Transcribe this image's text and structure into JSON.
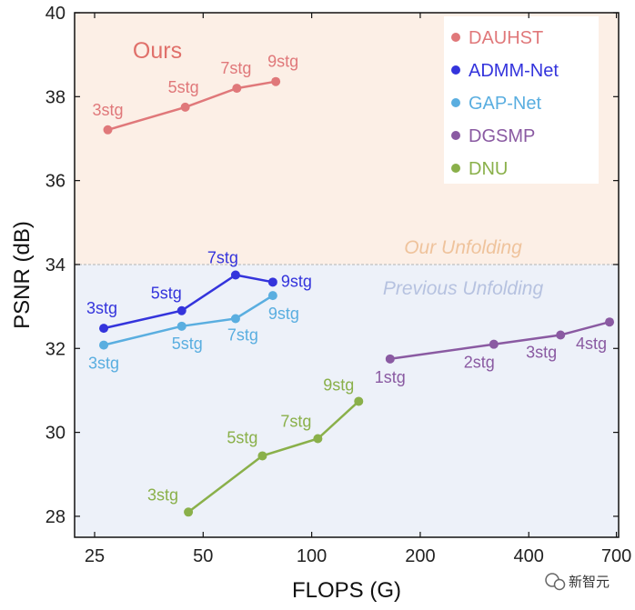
{
  "chart_data": {
    "type": "line",
    "xlabel": "FLOPS (G)",
    "ylabel": "PSNR (dB)",
    "x_scale": "log",
    "xlim": [
      22,
      710
    ],
    "ylim": [
      27.5,
      40
    ],
    "x_ticks": [
      25,
      50,
      100,
      200,
      400,
      700
    ],
    "x_tick_labels": [
      "25",
      "50",
      "100",
      "200",
      "400",
      "700"
    ],
    "y_ticks": [
      28,
      30,
      32,
      34,
      36,
      38,
      40
    ],
    "y_tick_labels": [
      "28",
      "30",
      "32",
      "34",
      "36",
      "38",
      "40"
    ],
    "grid": false,
    "legend_position": "top-right",
    "divider_y": 34.0,
    "regions": {
      "upper_label": "Our Unfolding",
      "lower_label": "Previous Unfolding",
      "upper_color": "#fcefe6",
      "lower_color": "#edf1f9",
      "upper_label_color": "#efc39c",
      "lower_label_color": "#b6c2e0"
    },
    "annotations": [
      {
        "text": "Ours",
        "color": "#e0706a"
      }
    ],
    "series": [
      {
        "name": "DAUHST",
        "color": "#e0787a",
        "x": [
          27.2,
          44.6,
          62.0,
          79.5
        ],
        "y": [
          37.21,
          37.75,
          38.2,
          38.36
        ],
        "labels": [
          "3stg",
          "5stg",
          "7stg",
          "9stg"
        ]
      },
      {
        "name": "ADMM-Net",
        "color": "#3434dc",
        "x": [
          26.5,
          43.6,
          61.5,
          78.0
        ],
        "y": [
          32.48,
          32.9,
          33.75,
          33.58
        ],
        "labels": [
          "3stg",
          "5stg",
          "7stg",
          "9stg"
        ]
      },
      {
        "name": "GAP-Net",
        "color": "#5aaee0",
        "x": [
          26.5,
          43.6,
          61.5,
          78.0
        ],
        "y": [
          32.08,
          32.53,
          32.71,
          33.26
        ],
        "labels": [
          "3stg",
          "5stg",
          "7stg",
          "9stg"
        ]
      },
      {
        "name": "DGSMP",
        "color": "#8a5aa2",
        "x": [
          165,
          320,
          490,
          670
        ],
        "y": [
          31.75,
          32.1,
          32.32,
          32.63
        ],
        "labels": [
          "1stg",
          "2stg",
          "3stg",
          "4stg"
        ]
      },
      {
        "name": "DNU",
        "color": "#8ab04a",
        "x": [
          45.5,
          73.0,
          104.0,
          135.0
        ],
        "y": [
          28.1,
          29.44,
          29.85,
          30.74
        ],
        "labels": [
          "3stg",
          "5stg",
          "7stg",
          "9stg"
        ]
      }
    ]
  },
  "watermark": {
    "text": "新智元"
  }
}
